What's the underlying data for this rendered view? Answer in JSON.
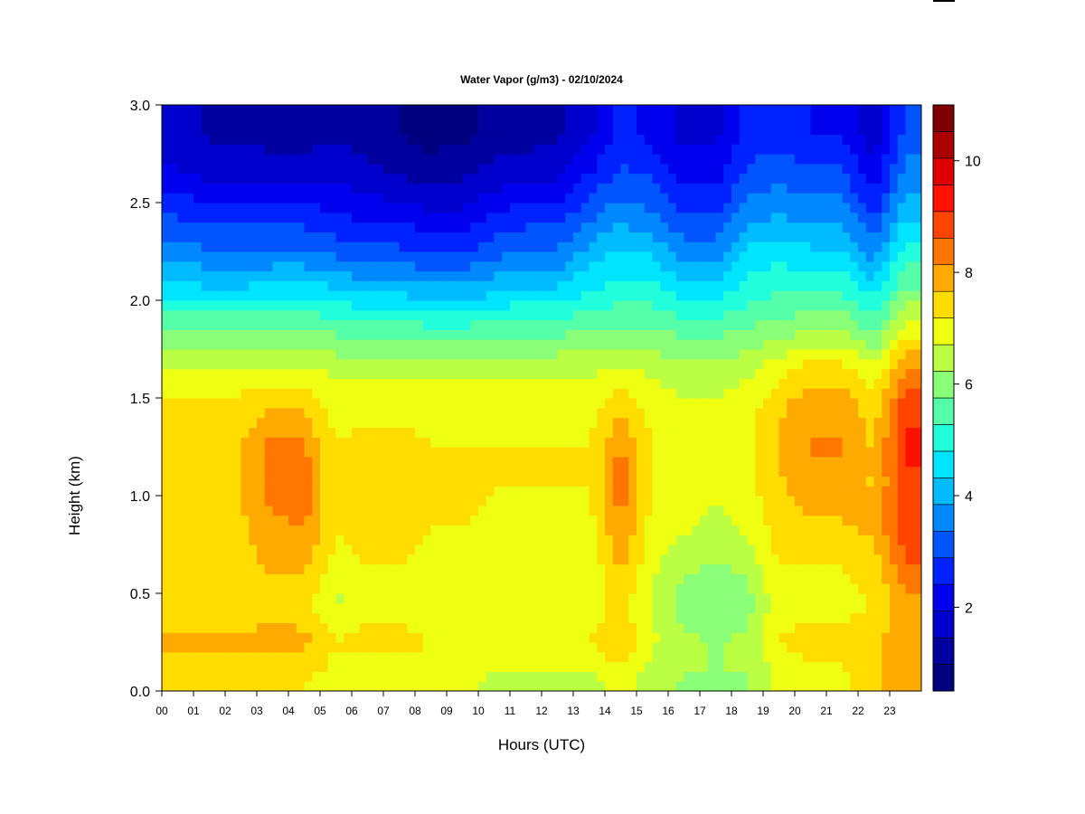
{
  "chart_data": {
    "type": "heatmap",
    "title": "Water Vapor (g/m3) - 02/10/2024",
    "xlabel": "Hours (UTC)",
    "ylabel": "Height (km)",
    "xlim": [
      0,
      24
    ],
    "ylim": [
      0,
      3
    ],
    "x_ticks": [
      "00",
      "01",
      "02",
      "03",
      "04",
      "05",
      "06",
      "07",
      "08",
      "09",
      "10",
      "11",
      "12",
      "13",
      "14",
      "15",
      "16",
      "17",
      "18",
      "19",
      "20",
      "21",
      "22",
      "23"
    ],
    "y_ticks": [
      "0.0",
      "0.5",
      "1.0",
      "1.5",
      "2.0",
      "2.5",
      "3.0"
    ],
    "colorbar": {
      "range": [
        0.5,
        11
      ],
      "ticks": [
        "2",
        "4",
        "6",
        "8",
        "10"
      ],
      "levels": [
        "#00007f",
        "#00009f",
        "#0000cc",
        "#0000ee",
        "#0022ff",
        "#0055ff",
        "#0088ff",
        "#00bbff",
        "#00e5ff",
        "#22ffdd",
        "#55ffaa",
        "#88ff77",
        "#bbff44",
        "#eeff11",
        "#ffdd00",
        "#ffaa00",
        "#ff7700",
        "#ff4400",
        "#ff1100",
        "#dd0000",
        "#aa0000",
        "#7f0000"
      ]
    },
    "heights_km": [
      0.05,
      0.25,
      0.45,
      0.65,
      0.85,
      1.05,
      1.25,
      1.45,
      1.65,
      1.85,
      2.05,
      2.25,
      2.45,
      2.65,
      2.85
    ],
    "hours_utc": [
      0.5,
      1.5,
      2.5,
      3.5,
      4.5,
      5.5,
      6.5,
      7.5,
      8.5,
      9.5,
      10.5,
      11.5,
      12.5,
      13.5,
      14.5,
      15.5,
      16.5,
      17.5,
      18.5,
      19.5,
      20.5,
      21.5,
      22.5,
      23.5
    ],
    "profiles_g_m3": [
      [
        7.2,
        7.8,
        7.2,
        7.4,
        7.6,
        7.6,
        7.6,
        7.4,
        6.8,
        5.8,
        4.6,
        3.6,
        2.8,
        2.0,
        1.6
      ],
      [
        7.2,
        7.8,
        7.2,
        7.4,
        7.6,
        7.6,
        7.6,
        7.4,
        6.8,
        5.8,
        4.4,
        3.4,
        2.6,
        1.8,
        1.4
      ],
      [
        7.2,
        7.8,
        7.2,
        7.4,
        7.6,
        7.6,
        7.6,
        7.4,
        6.8,
        5.8,
        4.4,
        3.4,
        2.6,
        1.8,
        1.4
      ],
      [
        7.2,
        7.9,
        7.4,
        7.8,
        8.0,
        8.4,
        8.4,
        7.6,
        6.8,
        5.8,
        4.6,
        3.4,
        2.6,
        1.8,
        1.2
      ],
      [
        7.2,
        7.8,
        7.4,
        7.8,
        8.2,
        8.4,
        8.2,
        7.6,
        6.8,
        5.8,
        4.6,
        3.4,
        2.6,
        1.8,
        1.2
      ],
      [
        7.0,
        7.2,
        6.6,
        7.0,
        7.2,
        7.2,
        7.2,
        7.0,
        6.6,
        5.6,
        4.4,
        3.2,
        2.4,
        1.8,
        1.4
      ],
      [
        6.8,
        7.4,
        7.0,
        7.2,
        7.4,
        7.4,
        7.4,
        7.0,
        6.6,
        5.6,
        4.2,
        3.0,
        2.2,
        1.6,
        1.2
      ],
      [
        6.8,
        7.4,
        7.0,
        7.2,
        7.4,
        7.4,
        7.4,
        7.0,
        6.6,
        5.6,
        4.2,
        3.0,
        2.2,
        1.4,
        1.0
      ],
      [
        6.8,
        7.2,
        6.8,
        7.0,
        7.2,
        7.2,
        7.2,
        7.0,
        6.6,
        5.4,
        4.0,
        2.8,
        2.0,
        1.2,
        0.8
      ],
      [
        6.8,
        7.2,
        6.8,
        7.0,
        7.2,
        7.4,
        7.2,
        7.0,
        6.6,
        5.4,
        4.0,
        2.8,
        2.0,
        1.4,
        0.8
      ],
      [
        6.6,
        7.2,
        6.8,
        6.8,
        7.0,
        7.2,
        7.2,
        7.0,
        6.6,
        5.6,
        4.2,
        3.2,
        2.4,
        1.6,
        1.2
      ],
      [
        6.6,
        7.2,
        6.8,
        6.8,
        7.0,
        7.2,
        7.2,
        7.0,
        6.6,
        5.6,
        4.4,
        3.4,
        2.6,
        1.8,
        1.2
      ],
      [
        6.6,
        7.2,
        6.8,
        6.8,
        7.0,
        7.2,
        7.2,
        7.0,
        6.6,
        5.6,
        4.4,
        3.4,
        2.6,
        1.8,
        1.4
      ],
      [
        6.4,
        7.2,
        6.8,
        6.8,
        7.0,
        7.2,
        7.2,
        7.0,
        6.6,
        5.8,
        4.8,
        4.0,
        3.2,
        2.4,
        1.8
      ],
      [
        7.0,
        7.6,
        7.4,
        7.8,
        8.2,
        8.4,
        8.2,
        7.6,
        6.8,
        5.8,
        5.0,
        4.4,
        3.6,
        3.0,
        2.6
      ],
      [
        6.4,
        6.8,
        6.6,
        6.8,
        7.0,
        7.2,
        7.2,
        7.0,
        6.6,
        5.8,
        5.0,
        4.2,
        3.4,
        2.8,
        2.2
      ],
      [
        6.2,
        6.4,
        6.0,
        6.4,
        6.8,
        7.0,
        7.0,
        6.8,
        6.4,
        5.6,
        4.6,
        3.6,
        2.8,
        2.2,
        1.8
      ],
      [
        6.2,
        6.2,
        5.8,
        6.2,
        6.6,
        6.8,
        6.8,
        6.8,
        6.4,
        5.6,
        4.6,
        3.6,
        2.8,
        2.2,
        1.8
      ],
      [
        6.2,
        6.4,
        6.0,
        6.4,
        6.8,
        7.0,
        7.0,
        7.0,
        6.6,
        5.8,
        5.0,
        4.4,
        3.6,
        3.0,
        2.6
      ],
      [
        6.8,
        7.2,
        7.0,
        7.2,
        7.4,
        7.6,
        7.6,
        7.6,
        7.0,
        6.0,
        5.2,
        4.6,
        3.8,
        3.2,
        2.6
      ],
      [
        7.0,
        7.4,
        7.0,
        7.2,
        7.6,
        8.0,
        8.2,
        8.0,
        7.4,
        6.2,
        5.2,
        4.4,
        3.6,
        3.0,
        2.4
      ],
      [
        7.0,
        7.4,
        7.0,
        7.2,
        7.6,
        8.0,
        8.2,
        8.0,
        7.4,
        6.2,
        5.2,
        4.4,
        3.6,
        3.0,
        2.4
      ],
      [
        7.6,
        7.6,
        7.2,
        7.4,
        7.8,
        7.6,
        7.6,
        7.4,
        6.8,
        5.6,
        4.6,
        3.6,
        2.8,
        2.0,
        1.6
      ],
      [
        7.8,
        8.0,
        8.0,
        8.6,
        9.0,
        9.0,
        9.2,
        9.0,
        8.2,
        7.0,
        5.8,
        5.0,
        4.2,
        3.6,
        3.0
      ]
    ]
  }
}
